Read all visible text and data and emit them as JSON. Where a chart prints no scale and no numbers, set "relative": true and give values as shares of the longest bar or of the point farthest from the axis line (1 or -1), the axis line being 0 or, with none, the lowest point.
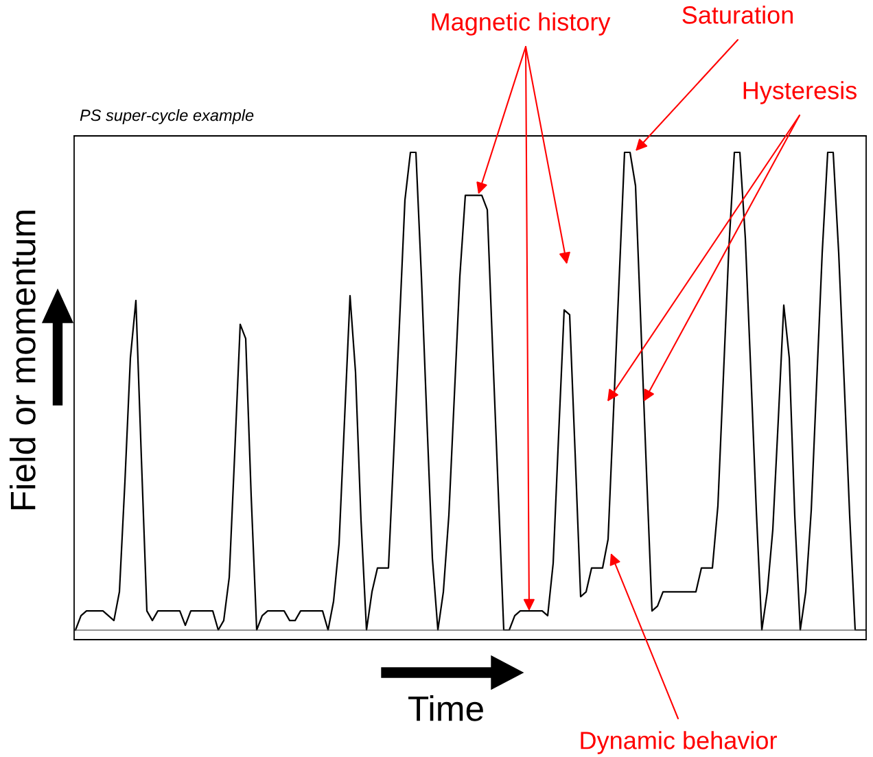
{
  "chart_data": {
    "type": "line",
    "relative": true,
    "title": "PS super-cycle example",
    "xlabel": "Time",
    "ylabel": "Field or momentum",
    "categories": [
      null,
      null,
      null,
      null,
      null,
      null,
      null,
      null,
      null,
      null,
      null,
      null,
      null,
      null,
      null,
      null,
      null,
      null,
      null,
      null,
      null,
      null,
      null,
      null,
      null,
      null,
      null,
      null,
      null,
      null,
      null,
      null,
      null,
      null,
      null,
      null,
      null,
      null,
      null,
      null,
      null,
      null,
      null,
      null,
      null,
      null,
      null,
      null,
      null,
      null,
      null,
      null,
      null,
      null,
      null,
      null,
      null,
      null,
      null,
      null,
      null,
      null,
      null,
      null,
      null,
      null,
      null,
      null,
      null,
      null,
      null,
      null,
      null,
      null,
      null,
      null,
      null,
      null,
      null,
      null,
      null,
      null,
      null,
      null,
      null,
      null,
      null,
      null,
      null,
      null,
      null,
      null,
      null,
      null,
      null,
      null,
      null,
      null,
      null,
      null,
      null,
      null,
      null,
      null,
      null,
      null,
      null,
      null,
      null,
      null,
      null,
      null,
      null,
      null,
      null,
      null,
      null,
      null,
      null,
      null,
      null,
      null,
      null,
      null,
      null,
      null,
      null,
      null,
      null,
      null,
      null,
      null,
      null,
      null,
      null,
      null,
      null,
      null,
      null,
      null,
      null,
      null,
      null,
      null,
      null
    ],
    "series": [
      {
        "color": "#000000",
        "values": [
          0,
          0.03,
          0.04,
          0.04,
          0.04,
          0.04,
          0.03,
          0.02,
          0.08,
          0.31,
          0.57,
          0.69,
          0.36,
          0.04,
          0.02,
          0.04,
          0.04,
          0.04,
          0.04,
          0.04,
          0.01,
          0.04,
          0.04,
          0.04,
          0.04,
          0.04,
          0,
          0.02,
          0.11,
          0.37,
          0.64,
          0.61,
          0.28,
          0,
          0.03,
          0.04,
          0.04,
          0.04,
          0.04,
          0.02,
          0.02,
          0.04,
          0.04,
          0.04,
          0.04,
          0.04,
          0,
          0.06,
          0.18,
          0.44,
          0.7,
          0.54,
          0.23,
          0,
          0.08,
          0.13,
          0.13,
          0.13,
          0.38,
          0.64,
          0.9,
          1.0,
          1.0,
          0.74,
          0.44,
          0.15,
          0,
          0.08,
          0.24,
          0.49,
          0.74,
          0.91,
          0.91,
          0.91,
          0.91,
          0.88,
          0.58,
          0.29,
          0,
          0,
          0.03,
          0.04,
          0.04,
          0.04,
          0.04,
          0.04,
          0.03,
          0.14,
          0.41,
          0.67,
          0.66,
          0.37,
          0.07,
          0.08,
          0.13,
          0.13,
          0.13,
          0.19,
          0.46,
          0.73,
          1.0,
          1.0,
          0.93,
          0.63,
          0.33,
          0.04,
          0.05,
          0.08,
          0.08,
          0.08,
          0.08,
          0.08,
          0.08,
          0.08,
          0.13,
          0.13,
          0.13,
          0.26,
          0.53,
          0.8,
          1.0,
          1.0,
          0.82,
          0.54,
          0.25,
          0,
          0.08,
          0.21,
          0.44,
          0.68,
          0.57,
          0.24,
          0,
          0.08,
          0.25,
          0.52,
          0.79,
          1.0,
          1.0,
          0.79,
          0.52,
          0.24,
          0,
          0,
          0
        ]
      }
    ],
    "line_style": "solid",
    "annotations": [
      "Magnetic history",
      "Saturation",
      "Hysteresis",
      "Dynamic behavior"
    ]
  }
}
